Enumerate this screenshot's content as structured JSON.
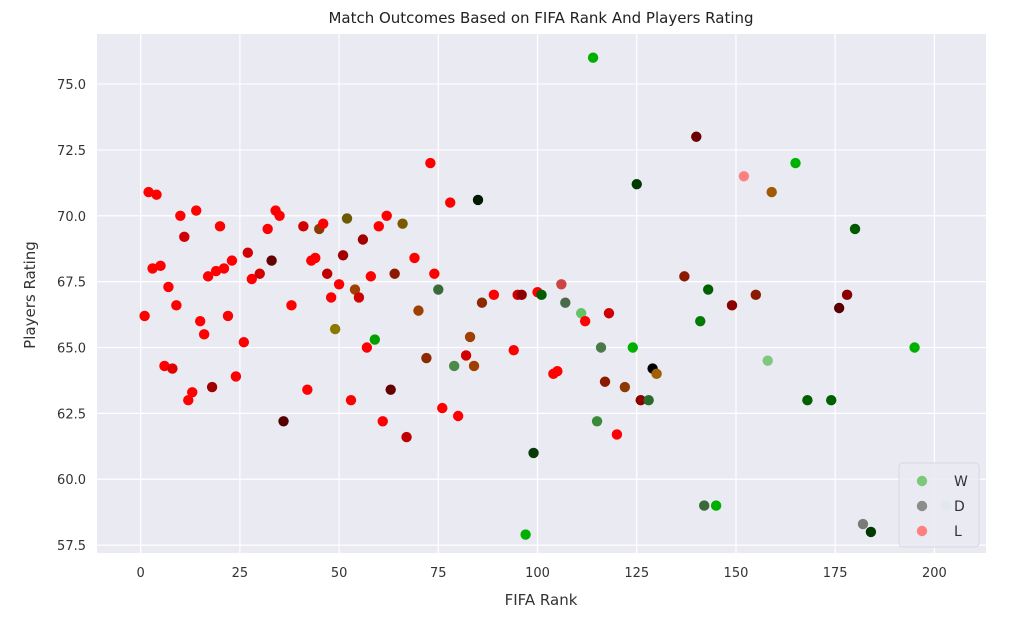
{
  "chart_data": {
    "type": "scatter",
    "title": "Match Outcomes Based on FIFA Rank And Players Rating",
    "xlabel": "FIFA Rank",
    "ylabel": "Players Rating",
    "xlim": [
      -11,
      213
    ],
    "ylim": [
      57.2,
      76.9
    ],
    "xticks": [
      0,
      25,
      50,
      75,
      100,
      125,
      150,
      175,
      200
    ],
    "yticks": [
      57.5,
      60.0,
      62.5,
      65.0,
      67.5,
      70.0,
      72.5,
      75.0
    ],
    "grid": true,
    "legend_position": "bottom-right",
    "legend": [
      {
        "label": "W",
        "color": "#7cc87c"
      },
      {
        "label": "D",
        "color": "#8c8c8c"
      },
      {
        "label": "L",
        "color": "#ff8080"
      }
    ],
    "points": [
      {
        "x": 1,
        "y": 66.2,
        "color": "#ff0000"
      },
      {
        "x": 2,
        "y": 70.9,
        "color": "#ff0000"
      },
      {
        "x": 3,
        "y": 68.0,
        "color": "#ff0000"
      },
      {
        "x": 4,
        "y": 70.8,
        "color": "#ff0000"
      },
      {
        "x": 5,
        "y": 68.1,
        "color": "#ff0000"
      },
      {
        "x": 6,
        "y": 64.3,
        "color": "#ff0000"
      },
      {
        "x": 7,
        "y": 67.3,
        "color": "#ff0000"
      },
      {
        "x": 8,
        "y": 64.2,
        "color": "#e00000"
      },
      {
        "x": 9,
        "y": 66.6,
        "color": "#ff0000"
      },
      {
        "x": 10,
        "y": 70.0,
        "color": "#ff0000"
      },
      {
        "x": 11,
        "y": 69.2,
        "color": "#d00000"
      },
      {
        "x": 12,
        "y": 63.0,
        "color": "#ff0000"
      },
      {
        "x": 13,
        "y": 63.3,
        "color": "#ff0000"
      },
      {
        "x": 14,
        "y": 70.2,
        "color": "#ff0000"
      },
      {
        "x": 15,
        "y": 66.0,
        "color": "#ff0000"
      },
      {
        "x": 16,
        "y": 65.5,
        "color": "#ff0000"
      },
      {
        "x": 17,
        "y": 67.7,
        "color": "#ff0000"
      },
      {
        "x": 18,
        "y": 63.5,
        "color": "#a00000"
      },
      {
        "x": 19,
        "y": 67.9,
        "color": "#ff0000"
      },
      {
        "x": 20,
        "y": 69.6,
        "color": "#ff0000"
      },
      {
        "x": 21,
        "y": 68.0,
        "color": "#ff0000"
      },
      {
        "x": 22,
        "y": 66.2,
        "color": "#ff0000"
      },
      {
        "x": 23,
        "y": 68.3,
        "color": "#ff0000"
      },
      {
        "x": 24,
        "y": 63.9,
        "color": "#ff0000"
      },
      {
        "x": 26,
        "y": 65.2,
        "color": "#ff0000"
      },
      {
        "x": 27,
        "y": 68.6,
        "color": "#d00000"
      },
      {
        "x": 28,
        "y": 67.6,
        "color": "#ff0000"
      },
      {
        "x": 30,
        "y": 67.8,
        "color": "#d00000"
      },
      {
        "x": 32,
        "y": 69.5,
        "color": "#ff0000"
      },
      {
        "x": 33,
        "y": 68.3,
        "color": "#660000"
      },
      {
        "x": 34,
        "y": 70.2,
        "color": "#ff0000"
      },
      {
        "x": 35,
        "y": 70.0,
        "color": "#ff0000"
      },
      {
        "x": 36,
        "y": 62.2,
        "color": "#550000"
      },
      {
        "x": 38,
        "y": 66.6,
        "color": "#ff0000"
      },
      {
        "x": 41,
        "y": 69.6,
        "color": "#d00000"
      },
      {
        "x": 42,
        "y": 63.4,
        "color": "#ff0000"
      },
      {
        "x": 43,
        "y": 68.3,
        "color": "#ff0000"
      },
      {
        "x": 44,
        "y": 68.4,
        "color": "#ff0000"
      },
      {
        "x": 45,
        "y": 69.5,
        "color": "#8b3a00"
      },
      {
        "x": 46,
        "y": 69.7,
        "color": "#ff0000"
      },
      {
        "x": 47,
        "y": 67.8,
        "color": "#c00000"
      },
      {
        "x": 48,
        "y": 66.9,
        "color": "#ff0000"
      },
      {
        "x": 49,
        "y": 65.7,
        "color": "#8c7a00"
      },
      {
        "x": 50,
        "y": 67.4,
        "color": "#ff0000"
      },
      {
        "x": 51,
        "y": 68.5,
        "color": "#a00000"
      },
      {
        "x": 52,
        "y": 69.9,
        "color": "#6b5a00"
      },
      {
        "x": 53,
        "y": 63.0,
        "color": "#ff0000"
      },
      {
        "x": 54,
        "y": 67.2,
        "color": "#a04000"
      },
      {
        "x": 55,
        "y": 66.9,
        "color": "#d00000"
      },
      {
        "x": 56,
        "y": 69.1,
        "color": "#a00000"
      },
      {
        "x": 57,
        "y": 65.0,
        "color": "#ff0000"
      },
      {
        "x": 58,
        "y": 67.7,
        "color": "#ff0000"
      },
      {
        "x": 59,
        "y": 65.3,
        "color": "#00a000"
      },
      {
        "x": 60,
        "y": 69.6,
        "color": "#ff0000"
      },
      {
        "x": 61,
        "y": 62.2,
        "color": "#ff0000"
      },
      {
        "x": 62,
        "y": 70.0,
        "color": "#ff0000"
      },
      {
        "x": 63,
        "y": 63.4,
        "color": "#660000"
      },
      {
        "x": 64,
        "y": 67.8,
        "color": "#8b1a00"
      },
      {
        "x": 66,
        "y": 69.7,
        "color": "#7a5a00"
      },
      {
        "x": 67,
        "y": 61.6,
        "color": "#c00000"
      },
      {
        "x": 69,
        "y": 68.4,
        "color": "#ff0000"
      },
      {
        "x": 70,
        "y": 66.4,
        "color": "#a04000"
      },
      {
        "x": 72,
        "y": 64.6,
        "color": "#8b2a00"
      },
      {
        "x": 73,
        "y": 72.0,
        "color": "#ff0000"
      },
      {
        "x": 74,
        "y": 67.8,
        "color": "#ff0000"
      },
      {
        "x": 75,
        "y": 67.2,
        "color": "#3a6a3a"
      },
      {
        "x": 76,
        "y": 62.7,
        "color": "#ff0000"
      },
      {
        "x": 78,
        "y": 70.5,
        "color": "#ff0000"
      },
      {
        "x": 79,
        "y": 64.3,
        "color": "#4a8a4a"
      },
      {
        "x": 80,
        "y": 62.4,
        "color": "#ff0000"
      },
      {
        "x": 82,
        "y": 64.7,
        "color": "#d00000"
      },
      {
        "x": 83,
        "y": 65.4,
        "color": "#a04000"
      },
      {
        "x": 84,
        "y": 64.3,
        "color": "#a04000"
      },
      {
        "x": 85,
        "y": 70.6,
        "color": "#001a00"
      },
      {
        "x": 86,
        "y": 66.7,
        "color": "#8b2a00"
      },
      {
        "x": 89,
        "y": 67.0,
        "color": "#ff0000"
      },
      {
        "x": 94,
        "y": 64.9,
        "color": "#ff0000"
      },
      {
        "x": 95,
        "y": 67.0,
        "color": "#d00000"
      },
      {
        "x": 96,
        "y": 67.0,
        "color": "#8b0000"
      },
      {
        "x": 97,
        "y": 57.9,
        "color": "#00b000"
      },
      {
        "x": 99,
        "y": 61.0,
        "color": "#0a3a0a"
      },
      {
        "x": 100,
        "y": 67.1,
        "color": "#ff0000"
      },
      {
        "x": 101,
        "y": 67.0,
        "color": "#006000"
      },
      {
        "x": 104,
        "y": 64.0,
        "color": "#ff0000"
      },
      {
        "x": 105,
        "y": 64.1,
        "color": "#ff0000"
      },
      {
        "x": 106,
        "y": 67.4,
        "color": "#cc4444"
      },
      {
        "x": 107,
        "y": 66.7,
        "color": "#4a6a4a"
      },
      {
        "x": 111,
        "y": 66.3,
        "color": "#66c066"
      },
      {
        "x": 112,
        "y": 66.0,
        "color": "#ff0000"
      },
      {
        "x": 114,
        "y": 76.0,
        "color": "#00b000"
      },
      {
        "x": 115,
        "y": 62.2,
        "color": "#3a8a3a"
      },
      {
        "x": 116,
        "y": 65.0,
        "color": "#4a7a4a"
      },
      {
        "x": 117,
        "y": 63.7,
        "color": "#8b1a00"
      },
      {
        "x": 118,
        "y": 66.3,
        "color": "#d00000"
      },
      {
        "x": 120,
        "y": 61.7,
        "color": "#ff0000"
      },
      {
        "x": 122,
        "y": 63.5,
        "color": "#8b3a00"
      },
      {
        "x": 124,
        "y": 65.0,
        "color": "#00b000"
      },
      {
        "x": 125,
        "y": 71.2,
        "color": "#003a00"
      },
      {
        "x": 126,
        "y": 63.0,
        "color": "#8b0000"
      },
      {
        "x": 128,
        "y": 63.0,
        "color": "#2a6a2a"
      },
      {
        "x": 129,
        "y": 64.2,
        "color": "#000000"
      },
      {
        "x": 130,
        "y": 64.0,
        "color": "#a06000"
      },
      {
        "x": 137,
        "y": 67.7,
        "color": "#8b1a00"
      },
      {
        "x": 140,
        "y": 73.0,
        "color": "#6b0000"
      },
      {
        "x": 141,
        "y": 66.0,
        "color": "#007a00"
      },
      {
        "x": 142,
        "y": 59.0,
        "color": "#3a6a3a"
      },
      {
        "x": 143,
        "y": 67.2,
        "color": "#006000"
      },
      {
        "x": 145,
        "y": 59.0,
        "color": "#00b000"
      },
      {
        "x": 149,
        "y": 66.6,
        "color": "#8b0000"
      },
      {
        "x": 152,
        "y": 71.5,
        "color": "#ff8080"
      },
      {
        "x": 155,
        "y": 67.0,
        "color": "#8b1a00"
      },
      {
        "x": 158,
        "y": 64.5,
        "color": "#7cc87c"
      },
      {
        "x": 159,
        "y": 70.9,
        "color": "#a05a00"
      },
      {
        "x": 165,
        "y": 72.0,
        "color": "#00b000"
      },
      {
        "x": 168,
        "y": 63.0,
        "color": "#006000"
      },
      {
        "x": 174,
        "y": 63.0,
        "color": "#006000"
      },
      {
        "x": 176,
        "y": 66.5,
        "color": "#5a0000"
      },
      {
        "x": 178,
        "y": 67.0,
        "color": "#8b0000"
      },
      {
        "x": 180,
        "y": 69.5,
        "color": "#005a00"
      },
      {
        "x": 182,
        "y": 58.3,
        "color": "#7a7a7a"
      },
      {
        "x": 184,
        "y": 58.0,
        "color": "#003a00"
      },
      {
        "x": 195,
        "y": 65.0,
        "color": "#00b000"
      },
      {
        "x": 203,
        "y": 59.0,
        "color": "#b8e0b8"
      }
    ]
  }
}
